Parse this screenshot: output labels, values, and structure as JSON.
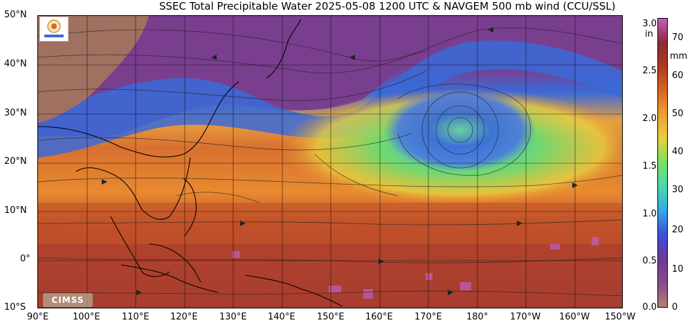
{
  "title": "SSEC Total Precipitable Water  2025-05-08 1200 UTC & NAVGEM 500 mb wind (CCU/SSL)",
  "lat_labels": [
    "50°N",
    "40°N",
    "30°N",
    "20°N",
    "10°N",
    "0°",
    "10°S"
  ],
  "lon_labels": [
    "90°E",
    "100°E",
    "110°E",
    "120°E",
    "130°E",
    "140°E",
    "150°E",
    "160°E",
    "170°E",
    "180°",
    "170°W",
    "160°W",
    "150°W"
  ],
  "colorbar": {
    "unit_in": "in",
    "unit_mm": "mm",
    "inch_ticks": [
      "3.0",
      "2.5",
      "2.0",
      "1.5",
      "1.0",
      "0.5",
      "0.0"
    ],
    "mm_ticks": [
      "70",
      "60",
      "50",
      "40",
      "30",
      "20",
      "10",
      "0"
    ],
    "colors": [
      "#b08070",
      "#8a4a8c",
      "#6b3a9a",
      "#3a50d8",
      "#38a8e8",
      "#4ad8b0",
      "#78e060",
      "#e8d040",
      "#f0a030",
      "#d86820",
      "#b03a20",
      "#8a2a3a",
      "#c060c0"
    ]
  },
  "logo_text": "CIMSS",
  "map_colors": {
    "land_dry": "#a07060",
    "purple": "#7a3e8e",
    "blue": "#3a6ad8",
    "cyan": "#4ab8e0",
    "green": "#70d870",
    "yellow": "#e8c840",
    "orange": "#e88a30",
    "red": "#c0502a",
    "darkred": "#8a2e2e"
  }
}
